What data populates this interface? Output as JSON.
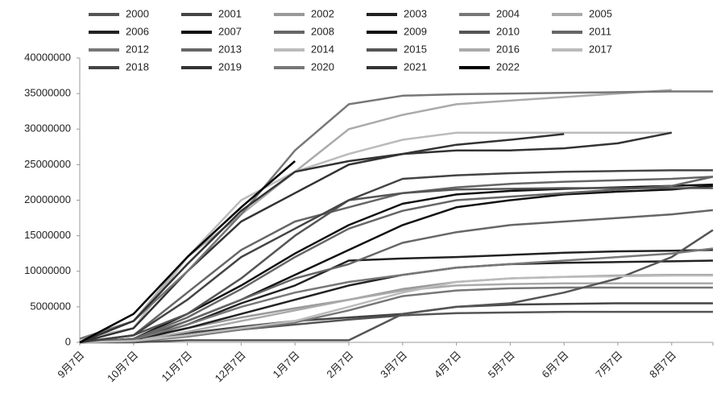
{
  "chart_data": {
    "type": "line",
    "categories": [
      "9月7日",
      "10月7日",
      "11月7日",
      "12月7日",
      "1月7日",
      "2月7日",
      "3月7日",
      "4月7日",
      "5月7日",
      "6月7日",
      "7月7日",
      "8月7日",
      null
    ],
    "ylim": [
      0,
      40000000
    ],
    "yticks": [
      0,
      5000000,
      10000000,
      15000000,
      20000000,
      25000000,
      30000000,
      35000000,
      40000000
    ],
    "series": [
      {
        "name": "2000",
        "color": "#555555",
        "values": [
          0,
          200000,
          1000000,
          1800000,
          2500000,
          3200000,
          3800000,
          4100000,
          4200000,
          4300000,
          4300000,
          4300000,
          4300000
        ]
      },
      {
        "name": "2001",
        "color": "#444444",
        "values": [
          0,
          300000,
          1300000,
          2200000,
          3000000,
          3500000,
          4000000,
          5000000,
          5300000,
          5400000,
          5500000,
          5500000,
          5500000
        ]
      },
      {
        "name": "2002",
        "color": "#999999",
        "values": [
          0,
          500000,
          2000000,
          3500000,
          4800000,
          6000000,
          7500000,
          8500000,
          9000000,
          9200000,
          9400000,
          9500000,
          9500000
        ]
      },
      {
        "name": "2003",
        "color": "#222222",
        "values": [
          0,
          300000,
          2000000,
          4000000,
          6000000,
          8000000,
          9500000,
          10500000,
          11000000,
          11200000,
          11300000,
          11400000,
          11500000
        ]
      },
      {
        "name": "2004",
        "color": "#777777",
        "values": [
          0,
          100000,
          800000,
          1800000,
          2800000,
          4500000,
          6500000,
          7300000,
          7600000,
          7700000,
          7700000,
          7700000,
          7700000
        ]
      },
      {
        "name": "2005",
        "color": "#aaaaaa",
        "values": [
          0,
          200000,
          1500000,
          3000000,
          4500000,
          6000000,
          7300000,
          8000000,
          8200000,
          8300000,
          8300000,
          8300000,
          8300000
        ]
      },
      {
        "name": "2006",
        "color": "#222222",
        "values": [
          0,
          300000,
          2500000,
          5500000,
          8000000,
          11500000,
          11800000,
          12000000,
          12300000,
          12600000,
          12800000,
          12900000,
          13000000
        ]
      },
      {
        "name": "2007",
        "color": "#111111",
        "values": [
          0,
          500000,
          4000000,
          8000000,
          12500000,
          16500000,
          19500000,
          20800000,
          21300000,
          21600000,
          21800000,
          22000000,
          22200000
        ]
      },
      {
        "name": "2008",
        "color": "#666666",
        "values": [
          0,
          1000000,
          7000000,
          13000000,
          17000000,
          19000000,
          21000000,
          21800000,
          22300000,
          22600000,
          22800000,
          23000000,
          23300000
        ]
      },
      {
        "name": "2009",
        "color": "#111111",
        "values": [
          0,
          300000,
          3000000,
          6000000,
          9500000,
          13000000,
          16500000,
          19000000,
          20000000,
          20800000,
          21200000,
          21500000,
          22000000
        ]
      },
      {
        "name": "2010",
        "color": "#555555",
        "values": [
          0,
          0,
          300000,
          300000,
          300000,
          300000,
          4000000,
          5000000,
          5500000,
          7000000,
          9000000,
          12000000,
          15800000
        ]
      },
      {
        "name": "2011",
        "color": "#666666",
        "values": [
          0,
          500000,
          3500000,
          7500000,
          12000000,
          16000000,
          18500000,
          20000000,
          20500000,
          21000000,
          21500000,
          22000000,
          23300000
        ]
      },
      {
        "name": "2012",
        "color": "#777777",
        "values": [
          0,
          400000,
          2500000,
          5000000,
          7000000,
          8500000,
          9500000,
          10500000,
          11000000,
          11500000,
          12000000,
          12500000,
          13200000
        ]
      },
      {
        "name": "2013",
        "color": "#666666",
        "values": [
          0,
          500000,
          3000000,
          6000000,
          9000000,
          11000000,
          14000000,
          15500000,
          16500000,
          17000000,
          17500000,
          18000000,
          18600000
        ]
      },
      {
        "name": "2014",
        "color": "#bbbbbb",
        "values": [
          0,
          200000,
          1000000,
          2000000,
          3000000,
          5000000,
          7000000,
          8500000,
          9000000,
          9200000,
          9300000,
          9400000,
          9400000
        ]
      },
      {
        "name": "2015",
        "color": "#555555",
        "values": [
          0,
          1000000,
          4000000,
          9000000,
          15000000,
          20000000,
          21000000,
          21500000,
          21600000,
          21700000,
          21700000,
          21700000,
          21700000
        ]
      },
      {
        "name": "2016",
        "color": "#aaaaaa",
        "values": [
          500000,
          3000000,
          12000000,
          18000000,
          24000000,
          30000000,
          32000000,
          33500000,
          34000000,
          34500000,
          35000000,
          35500000,
          null
        ]
      },
      {
        "name": "2017",
        "color": "#bbbbbb",
        "values": [
          500000,
          2000000,
          12000000,
          20000000,
          24000000,
          26500000,
          28500000,
          29500000,
          29500000,
          29500000,
          29500000,
          29500000,
          null
        ]
      },
      {
        "name": "2018",
        "color": "#444444",
        "values": [
          0,
          1000000,
          6000000,
          12000000,
          16000000,
          20000000,
          23000000,
          23500000,
          23800000,
          24000000,
          24100000,
          24200000,
          24200000
        ]
      },
      {
        "name": "2019",
        "color": "#333333",
        "values": [
          0,
          2000000,
          10000000,
          17000000,
          21000000,
          25000000,
          26500000,
          27000000,
          27000000,
          27300000,
          28000000,
          29500000,
          null
        ]
      },
      {
        "name": "2020",
        "color": "#777777",
        "values": [
          500000,
          3000000,
          10000000,
          18000000,
          27000000,
          33500000,
          34700000,
          34900000,
          35000000,
          35100000,
          35200000,
          35300000,
          35300000
        ]
      },
      {
        "name": "2021",
        "color": "#333333",
        "values": [
          0,
          3000000,
          11000000,
          18500000,
          24000000,
          25500000,
          26500000,
          27800000,
          28500000,
          29300000,
          null,
          null,
          null
        ]
      },
      {
        "name": "2022",
        "color": "#000000",
        "values": [
          0,
          4000000,
          12000000,
          19000000,
          25500000,
          null,
          null,
          null,
          null,
          null,
          null,
          null,
          null
        ]
      }
    ]
  }
}
